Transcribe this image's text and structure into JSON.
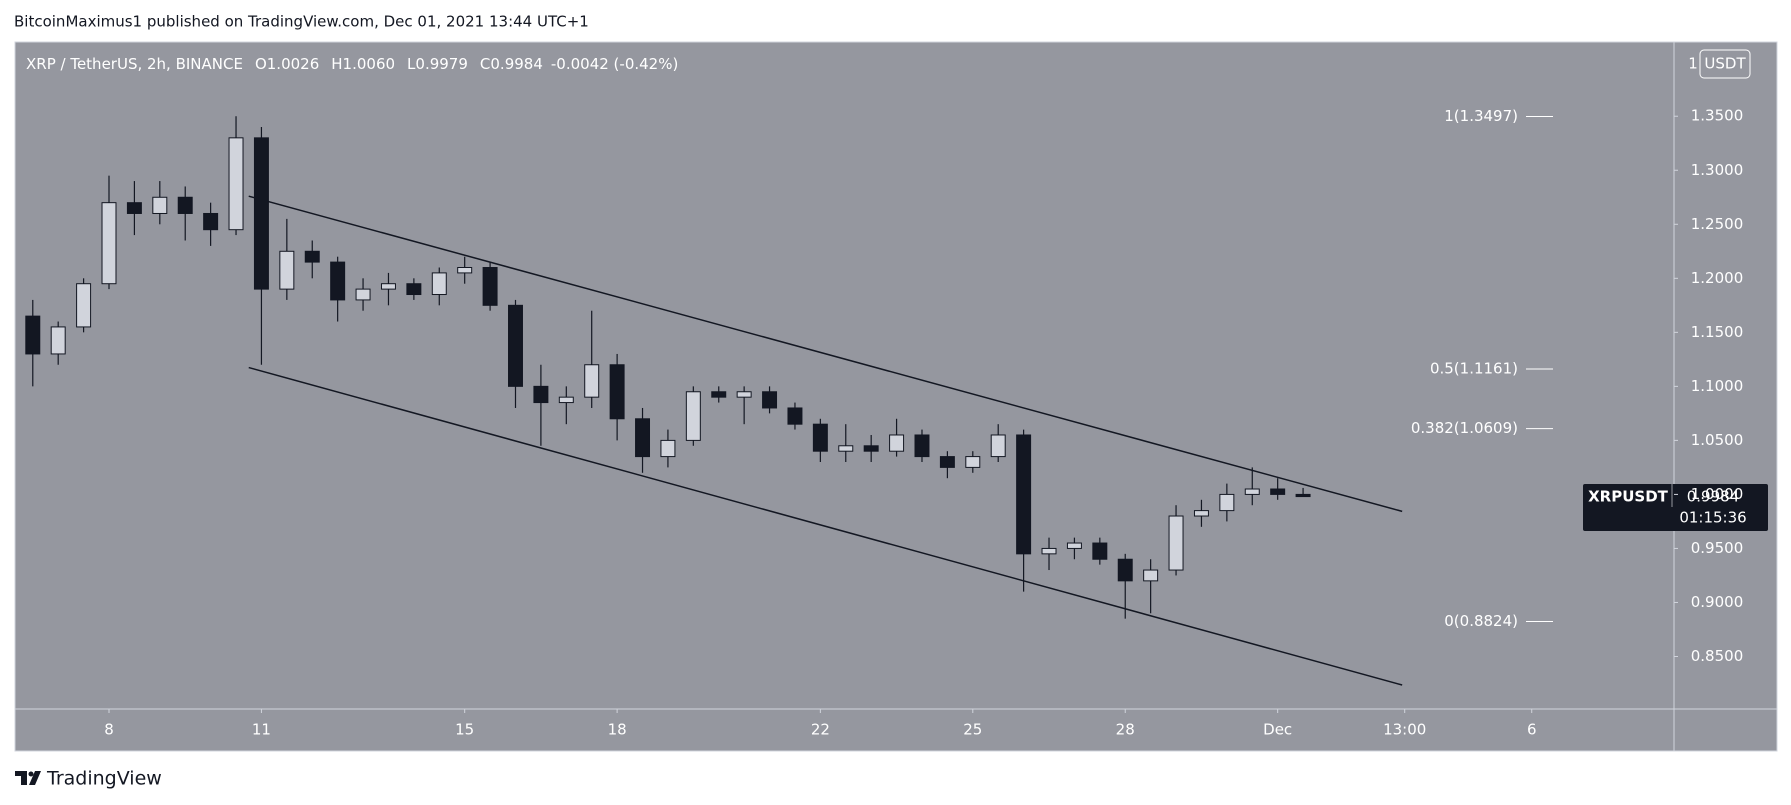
{
  "chart_data": {
    "type": "candlestick",
    "header": "BitcoinMaximus1 published on TradingView.com, Dec 01, 2021 13:44 UTC+1",
    "symbol_info": "XRP / TetherUS, 2h, BINANCE",
    "ohlc_legend": [
      {
        "label": "O",
        "value": "1.0026"
      },
      {
        "label": "H",
        "value": "1.0060"
      },
      {
        "label": "L",
        "value": "0.9979"
      },
      {
        "label": "C",
        "value": "0.9984"
      }
    ],
    "change": "-0.0042 (-0.42%)",
    "scale_mode": "1",
    "currency": "USDT",
    "price_tag": {
      "symbol": "XRPUSDT",
      "price": "0.9984",
      "countdown": "01:15:36"
    },
    "brand": "TradingView",
    "up_color": "#d1d4dc",
    "down_color": "#131722",
    "background": "#95979f",
    "xlim": [
      6.15,
      38.8
    ],
    "xticks": [
      8,
      11,
      15,
      18,
      22,
      25,
      28,
      {
        "value": 31,
        "label": "Dec"
      },
      {
        "value": 33.5,
        "label": "13:00"
      },
      {
        "value": 36,
        "label": "6"
      }
    ],
    "ylim": [
      0.8014,
      1.4187
    ],
    "yticks": [
      {
        "value": 0.85,
        "label": "0.8500"
      },
      {
        "value": 0.9,
        "label": "0.9000"
      },
      {
        "value": 0.95,
        "label": "0.9500"
      },
      {
        "value": 1.0,
        "label": "1.0000"
      },
      {
        "value": 1.05,
        "label": "1.0500"
      },
      {
        "value": 1.1,
        "label": "1.1000"
      },
      {
        "value": 1.15,
        "label": "1.1500"
      },
      {
        "value": 1.2,
        "label": "1.2000"
      },
      {
        "value": 1.25,
        "label": "1.2500"
      },
      {
        "value": 1.3,
        "label": "1.3000"
      },
      {
        "value": 1.35,
        "label": "1.3500"
      }
    ],
    "x": [
      6.5,
      7,
      7.5,
      8,
      8.5,
      9,
      9.5,
      10,
      10.5,
      11,
      11.5,
      12,
      12.5,
      13,
      13.5,
      14,
      14.5,
      15,
      15.5,
      16,
      16.5,
      17,
      17.5,
      18,
      18.5,
      19,
      19.5,
      20,
      20.5,
      21,
      21.5,
      22,
      22.5,
      23,
      23.5,
      24,
      24.5,
      25,
      25.5,
      26,
      26.5,
      27,
      27.5,
      28,
      28.5,
      29,
      29.5,
      30,
      30.5,
      31,
      31.5
    ],
    "open": [
      1.165,
      1.13,
      1.155,
      1.195,
      1.27,
      1.26,
      1.275,
      1.26,
      1.245,
      1.33,
      1.19,
      1.225,
      1.215,
      1.18,
      1.19,
      1.195,
      1.185,
      1.205,
      1.21,
      1.175,
      1.1,
      1.085,
      1.09,
      1.12,
      1.07,
      1.035,
      1.05,
      1.095,
      1.09,
      1.095,
      1.08,
      1.065,
      1.04,
      1.045,
      1.04,
      1.055,
      1.035,
      1.025,
      1.035,
      1.055,
      0.945,
      0.95,
      0.955,
      0.94,
      0.92,
      0.93,
      0.98,
      0.985,
      1.0,
      1.005,
      1.0
    ],
    "high": [
      1.18,
      1.16,
      1.2,
      1.295,
      1.29,
      1.29,
      1.285,
      1.27,
      1.35,
      1.34,
      1.255,
      1.235,
      1.22,
      1.2,
      1.205,
      1.2,
      1.21,
      1.22,
      1.215,
      1.18,
      1.12,
      1.1,
      1.17,
      1.13,
      1.08,
      1.06,
      1.1,
      1.1,
      1.1,
      1.1,
      1.085,
      1.07,
      1.065,
      1.055,
      1.07,
      1.06,
      1.04,
      1.04,
      1.065,
      1.06,
      0.96,
      0.96,
      0.96,
      0.945,
      0.94,
      0.99,
      0.995,
      1.01,
      1.025,
      1.015,
      1.006
    ],
    "low": [
      1.1,
      1.12,
      1.15,
      1.19,
      1.24,
      1.25,
      1.235,
      1.23,
      1.24,
      1.12,
      1.18,
      1.2,
      1.16,
      1.17,
      1.175,
      1.18,
      1.175,
      1.195,
      1.17,
      1.08,
      1.045,
      1.065,
      1.08,
      1.05,
      1.02,
      1.025,
      1.045,
      1.085,
      1.065,
      1.075,
      1.06,
      1.03,
      1.03,
      1.03,
      1.035,
      1.03,
      1.015,
      1.02,
      1.03,
      0.91,
      0.93,
      0.94,
      0.935,
      0.885,
      0.89,
      0.925,
      0.97,
      0.975,
      0.99,
      0.995,
      0.998
    ],
    "close": [
      1.13,
      1.155,
      1.195,
      1.27,
      1.26,
      1.275,
      1.26,
      1.245,
      1.33,
      1.19,
      1.225,
      1.215,
      1.18,
      1.19,
      1.195,
      1.185,
      1.205,
      1.21,
      1.175,
      1.1,
      1.085,
      1.09,
      1.12,
      1.07,
      1.035,
      1.05,
      1.095,
      1.09,
      1.095,
      1.08,
      1.065,
      1.04,
      1.045,
      1.04,
      1.055,
      1.035,
      1.025,
      1.035,
      1.055,
      0.945,
      0.95,
      0.955,
      0.94,
      0.92,
      0.93,
      0.98,
      0.985,
      1.0,
      1.005,
      1.0,
      0.998
    ],
    "channel_lines": [
      {
        "x": [
          10.75,
          33.45
        ],
        "y": [
          1.276,
          0.9843
        ]
      },
      {
        "x": [
          10.75,
          33.45
        ],
        "y": [
          1.1174,
          0.8236
        ]
      }
    ],
    "fib_levels": [
      {
        "value": 1.3497,
        "label": "1(1.3497)"
      },
      {
        "value": 1.1161,
        "label": "0.5(1.1161)"
      },
      {
        "value": 1.0609,
        "label": "0.382(1.0609)"
      },
      {
        "value": 0.8824,
        "label": "0(0.8824)"
      }
    ]
  }
}
